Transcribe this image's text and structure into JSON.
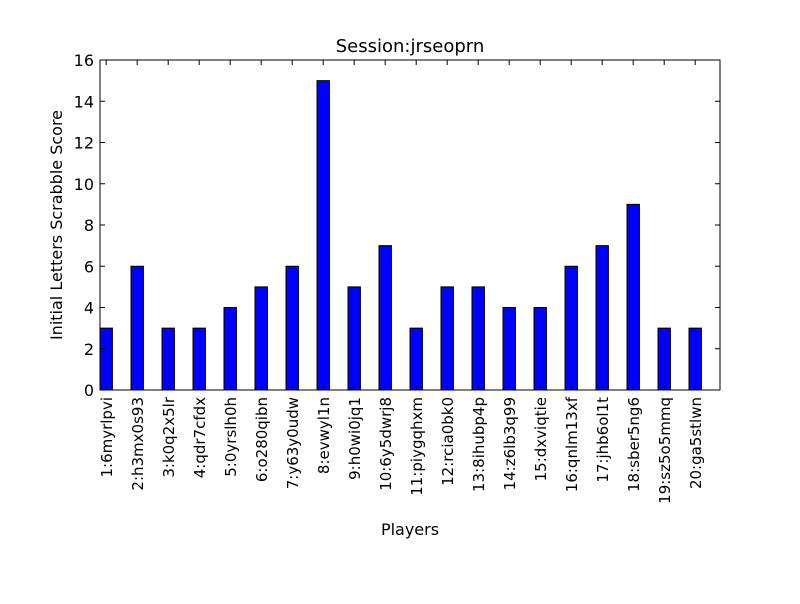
{
  "chart_data": {
    "type": "bar",
    "title": "Session:jrseoprn",
    "xlabel": "Players",
    "ylabel": "Initial Letters Scrabble Score",
    "ylim": [
      0,
      16
    ],
    "yticks": [
      0,
      2,
      4,
      6,
      8,
      10,
      12,
      14,
      16
    ],
    "grid": false,
    "categories": [
      "1:6myrlpvi",
      "2:h3mx0s93",
      "3:k0q2x5lr",
      "4:qdr7cfdx",
      "5:0yrslh0h",
      "6:o280qibn",
      "7:y63y0udw",
      "8:evwyl1n",
      "9:h0wi0jq1",
      "10:6y5dwrj8",
      "11:piygqhxm",
      "12:rcia0bk0",
      "13:8ihubp4p",
      "14:z6lb3q99",
      "15:dxviqtie",
      "16:qnlm13xf",
      "17:jhb6ol1t",
      "18:sber5ng6",
      "19:sz5o5mmq",
      "20:ga5stlwn"
    ],
    "values": [
      3,
      6,
      3,
      3,
      4,
      5,
      6,
      15,
      5,
      7,
      3,
      5,
      5,
      4,
      4,
      6,
      7,
      9,
      3,
      3
    ],
    "bar_color": "#0000ff",
    "edge_color": "#000000"
  }
}
